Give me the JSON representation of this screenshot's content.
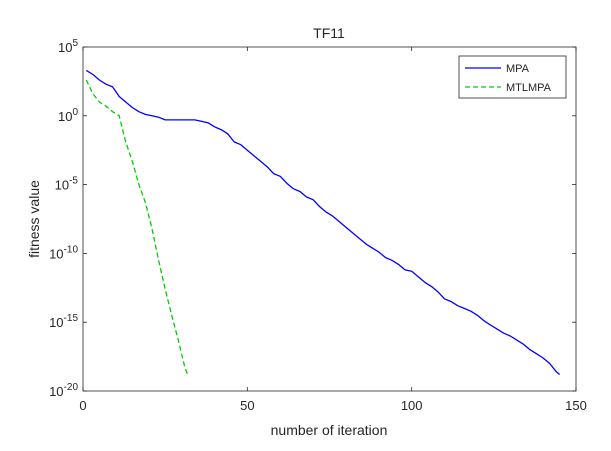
{
  "chart_data": {
    "type": "line",
    "title": "TF11",
    "xlabel": "number of iteration",
    "ylabel": "fitness value",
    "xlim": [
      0,
      150
    ],
    "ylim_log10": [
      -20,
      5
    ],
    "yscale": "log",
    "x_ticks": [
      {
        "value": 0,
        "label": "0"
      },
      {
        "value": 50,
        "label": "50"
      },
      {
        "value": 100,
        "label": "100"
      },
      {
        "value": 150,
        "label": "150"
      }
    ],
    "y_ticks": [
      {
        "exp": 5,
        "base": "10",
        "sup": "5"
      },
      {
        "exp": 0,
        "base": "10",
        "sup": "0"
      },
      {
        "exp": -5,
        "base": "10",
        "sup": "-5"
      },
      {
        "exp": -10,
        "base": "10",
        "sup": "-10"
      },
      {
        "exp": -15,
        "base": "10",
        "sup": "-15"
      },
      {
        "exp": -20,
        "base": "10",
        "sup": "-20"
      }
    ],
    "legend_position": "top-right",
    "series": [
      {
        "name": "MPA",
        "color": "#0000ff",
        "dash": "solid",
        "points_log10": [
          [
            1,
            3.3
          ],
          [
            3,
            3.0
          ],
          [
            5,
            2.6
          ],
          [
            7,
            2.3
          ],
          [
            9,
            2.1
          ],
          [
            11,
            1.4
          ],
          [
            13,
            1.0
          ],
          [
            15,
            0.6
          ],
          [
            17,
            0.3
          ],
          [
            19,
            0.1
          ],
          [
            21,
            0.0
          ],
          [
            23,
            -0.1
          ],
          [
            25,
            -0.3
          ],
          [
            28,
            -0.3
          ],
          [
            31,
            -0.3
          ],
          [
            34,
            -0.3
          ],
          [
            36,
            -0.4
          ],
          [
            38,
            -0.5
          ],
          [
            40,
            -0.8
          ],
          [
            42,
            -1.0
          ],
          [
            44,
            -1.3
          ],
          [
            46,
            -1.9
          ],
          [
            48,
            -2.1
          ],
          [
            50,
            -2.5
          ],
          [
            52,
            -2.9
          ],
          [
            54,
            -3.3
          ],
          [
            56,
            -3.7
          ],
          [
            58,
            -4.2
          ],
          [
            60,
            -4.4
          ],
          [
            62,
            -4.9
          ],
          [
            64,
            -5.3
          ],
          [
            66,
            -5.5
          ],
          [
            68,
            -5.9
          ],
          [
            70,
            -6.1
          ],
          [
            72,
            -6.6
          ],
          [
            74,
            -7.0
          ],
          [
            76,
            -7.3
          ],
          [
            78,
            -7.7
          ],
          [
            80,
            -8.1
          ],
          [
            82,
            -8.5
          ],
          [
            84,
            -8.9
          ],
          [
            86,
            -9.3
          ],
          [
            88,
            -9.6
          ],
          [
            90,
            -9.9
          ],
          [
            92,
            -10.3
          ],
          [
            94,
            -10.5
          ],
          [
            96,
            -10.8
          ],
          [
            98,
            -11.2
          ],
          [
            100,
            -11.3
          ],
          [
            102,
            -11.7
          ],
          [
            104,
            -12.1
          ],
          [
            106,
            -12.4
          ],
          [
            108,
            -12.8
          ],
          [
            110,
            -13.3
          ],
          [
            112,
            -13.5
          ],
          [
            114,
            -13.8
          ],
          [
            116,
            -14.0
          ],
          [
            118,
            -14.2
          ],
          [
            120,
            -14.5
          ],
          [
            122,
            -14.9
          ],
          [
            124,
            -15.2
          ],
          [
            126,
            -15.5
          ],
          [
            128,
            -15.8
          ],
          [
            130,
            -16.0
          ],
          [
            132,
            -16.3
          ],
          [
            134,
            -16.6
          ],
          [
            136,
            -17.0
          ],
          [
            138,
            -17.3
          ],
          [
            140,
            -17.6
          ],
          [
            142,
            -18.0
          ],
          [
            144,
            -18.6
          ],
          [
            145,
            -18.8
          ]
        ]
      },
      {
        "name": "MTLMPA",
        "color": "#00cc00",
        "dash": "dashed",
        "points_log10": [
          [
            1,
            2.6
          ],
          [
            3,
            1.6
          ],
          [
            5,
            1.0
          ],
          [
            7,
            0.7
          ],
          [
            9,
            0.3
          ],
          [
            11,
            0.0
          ],
          [
            13,
            -1.9
          ],
          [
            15,
            -3.3
          ],
          [
            17,
            -5.0
          ],
          [
            19,
            -6.3
          ],
          [
            21,
            -8.2
          ],
          [
            23,
            -10.5
          ],
          [
            25,
            -12.6
          ],
          [
            27,
            -14.5
          ],
          [
            29,
            -16.3
          ],
          [
            31,
            -18.3
          ],
          [
            32,
            -18.9
          ]
        ]
      }
    ]
  }
}
